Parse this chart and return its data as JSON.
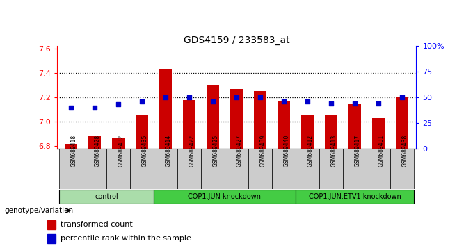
{
  "title": "GDS4159 / 233583_at",
  "samples": [
    "GSM689418",
    "GSM689428",
    "GSM689432",
    "GSM689435",
    "GSM689414",
    "GSM689422",
    "GSM689425",
    "GSM689427",
    "GSM689439",
    "GSM689440",
    "GSM689412",
    "GSM689413",
    "GSM689417",
    "GSM689431",
    "GSM689438"
  ],
  "bar_values": [
    6.82,
    6.88,
    6.87,
    7.05,
    7.43,
    7.18,
    7.3,
    7.27,
    7.25,
    7.17,
    7.05,
    7.05,
    7.15,
    7.03,
    7.2
  ],
  "percentile_values": [
    40,
    40,
    43,
    46,
    50,
    50,
    46,
    50,
    50,
    46,
    46,
    44,
    44,
    44,
    50
  ],
  "groups": [
    {
      "label": "control",
      "start": 0,
      "end": 4,
      "color": "#aaddaa"
    },
    {
      "label": "COP1.JUN knockdown",
      "start": 4,
      "end": 10,
      "color": "#44cc44"
    },
    {
      "label": "COP1.JUN.ETV1 knockdown",
      "start": 10,
      "end": 15,
      "color": "#44cc44"
    }
  ],
  "ylim_left": [
    6.78,
    7.62
  ],
  "ylim_right": [
    0,
    100
  ],
  "yticks_left": [
    6.8,
    7.0,
    7.2,
    7.4,
    7.6
  ],
  "yticks_right": [
    0,
    25,
    50,
    75,
    100
  ],
  "ytick_labels_right": [
    "0",
    "25",
    "50",
    "75",
    "100%"
  ],
  "bar_color": "#cc0000",
  "percentile_color": "#0000cc",
  "bg_color": "#ffffff",
  "bar_bottom": 6.78,
  "genotype_label": "genotype/variation",
  "legend_bar_label": "transformed count",
  "legend_pct_label": "percentile rank within the sample",
  "grid_yticks": [
    7.0,
    7.2,
    7.4
  ]
}
